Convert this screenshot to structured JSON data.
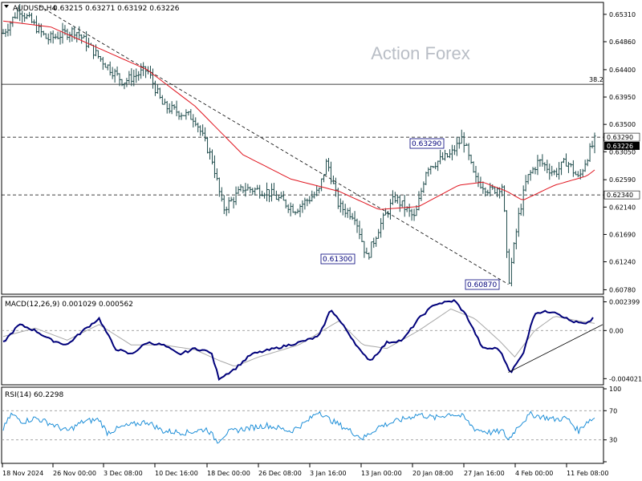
{
  "header": {
    "symbol": "AUDUSD,H4",
    "ohlc": "0.63215 0.63271 0.63192 0.63226",
    "watermark": "Action Forex"
  },
  "colors": {
    "bars": "#1e4b4b",
    "ma": "#e0141e",
    "macd_line": "#00007a",
    "macd_signal": "#a8a8a8",
    "rsi": "#1e8fd8",
    "frame": "#000000",
    "grid_dash": "#9a9a9a"
  },
  "chart_data": [
    {
      "type": "candlestick",
      "panel": "price",
      "ylim": [
        0.6072,
        0.6548
      ],
      "y_ticks": [
        "0.65310",
        "0.64860",
        "0.64400",
        "0.63950",
        "0.63500",
        "0.63050",
        "0.62590",
        "0.62140",
        "0.61690",
        "0.61240",
        "0.60780"
      ],
      "fibo_label": "38.2",
      "fibo_level": 0.6416,
      "levels": [
        {
          "label": "0.63290",
          "value": 0.6329,
          "style": "dashed",
          "axis_label": "0.63290"
        },
        {
          "label": "0.62340",
          "value": 0.6234,
          "style": "dashed",
          "axis_label": "0.62340"
        }
      ],
      "current_price_label": "0.63226",
      "annotations": [
        {
          "text": "0.63290",
          "at": "27 Jan 16:00"
        },
        {
          "text": "0.61300",
          "at": "13 Jan 00:00"
        },
        {
          "text": "0.60870",
          "at": "4 Feb 00:00"
        }
      ],
      "trendline": {
        "from": {
          "date": "18 Nov 2024",
          "value": 0.6545
        },
        "to": {
          "date": "4 Feb 00:00",
          "value": 0.6087
        }
      },
      "key_points": [
        [
          0,
          0.65
        ],
        [
          20,
          0.654
        ],
        [
          55,
          0.649
        ],
        [
          90,
          0.6505
        ],
        [
          120,
          0.646
        ],
        [
          150,
          0.642
        ],
        [
          180,
          0.644
        ],
        [
          200,
          0.638
        ],
        [
          240,
          0.636
        ],
        [
          262,
          0.629
        ],
        [
          275,
          0.621
        ],
        [
          300,
          0.6245
        ],
        [
          330,
          0.624
        ],
        [
          365,
          0.621
        ],
        [
          395,
          0.624
        ],
        [
          405,
          0.629
        ],
        [
          420,
          0.6215
        ],
        [
          440,
          0.62
        ],
        [
          455,
          0.613
        ],
        [
          470,
          0.618
        ],
        [
          490,
          0.623
        ],
        [
          515,
          0.6195
        ],
        [
          530,
          0.628
        ],
        [
          560,
          0.63
        ],
        [
          575,
          0.6329
        ],
        [
          590,
          0.626
        ],
        [
          610,
          0.624
        ],
        [
          625,
          0.625
        ],
        [
          632,
          0.6087
        ],
        [
          645,
          0.62
        ],
        [
          655,
          0.626
        ],
        [
          670,
          0.629
        ],
        [
          690,
          0.627
        ],
        [
          705,
          0.629
        ],
        [
          720,
          0.626
        ],
        [
          730,
          0.6295
        ],
        [
          740,
          0.6323
        ]
      ],
      "ma_points": [
        [
          0,
          0.652
        ],
        [
          60,
          0.651
        ],
        [
          120,
          0.6475
        ],
        [
          180,
          0.644
        ],
        [
          240,
          0.638
        ],
        [
          300,
          0.63
        ],
        [
          360,
          0.626
        ],
        [
          420,
          0.624
        ],
        [
          470,
          0.621
        ],
        [
          520,
          0.6215
        ],
        [
          570,
          0.625
        ],
        [
          600,
          0.6255
        ],
        [
          630,
          0.624
        ],
        [
          650,
          0.6225
        ],
        [
          690,
          0.625
        ],
        [
          730,
          0.6265
        ],
        [
          740,
          0.6275
        ]
      ]
    },
    {
      "type": "line",
      "panel": "macd",
      "label": "MACD(12,26,9) 0.001029 0.000562",
      "ylim": [
        -0.0044,
        0.0027
      ],
      "y_ticks": [
        "0.002399",
        "0.00",
        "-0.004021"
      ],
      "macd_points": [
        [
          0,
          -0.001
        ],
        [
          20,
          0.0005
        ],
        [
          40,
          0.0
        ],
        [
          60,
          -0.0008
        ],
        [
          80,
          -0.0012
        ],
        [
          100,
          0.0
        ],
        [
          120,
          0.001
        ],
        [
          140,
          -0.0015
        ],
        [
          160,
          -0.002
        ],
        [
          180,
          -0.001
        ],
        [
          200,
          -0.0012
        ],
        [
          220,
          -0.002
        ],
        [
          240,
          -0.0015
        ],
        [
          260,
          -0.0018
        ],
        [
          270,
          -0.004
        ],
        [
          290,
          -0.0032
        ],
        [
          310,
          -0.002
        ],
        [
          340,
          -0.0015
        ],
        [
          370,
          -0.001
        ],
        [
          395,
          -0.0005
        ],
        [
          410,
          0.0018
        ],
        [
          430,
          0.0
        ],
        [
          450,
          -0.002
        ],
        [
          460,
          -0.0025
        ],
        [
          480,
          -0.001
        ],
        [
          500,
          -0.0008
        ],
        [
          520,
          0.001
        ],
        [
          540,
          0.0022
        ],
        [
          565,
          0.0025
        ],
        [
          580,
          0.0012
        ],
        [
          600,
          -0.0015
        ],
        [
          620,
          -0.0015
        ],
        [
          635,
          -0.0035
        ],
        [
          650,
          -0.002
        ],
        [
          665,
          0.0015
        ],
        [
          690,
          0.0016
        ],
        [
          710,
          0.0008
        ],
        [
          730,
          0.0005
        ],
        [
          740,
          0.0012
        ]
      ],
      "signal_points": [
        [
          0,
          -0.0005
        ],
        [
          40,
          0.0002
        ],
        [
          80,
          -0.0008
        ],
        [
          120,
          0.0005
        ],
        [
          160,
          -0.0012
        ],
        [
          200,
          -0.0012
        ],
        [
          240,
          -0.0016
        ],
        [
          270,
          -0.0025
        ],
        [
          290,
          -0.003
        ],
        [
          320,
          -0.0022
        ],
        [
          370,
          -0.0012
        ],
        [
          400,
          0.0
        ],
        [
          420,
          0.0008
        ],
        [
          450,
          -0.0012
        ],
        [
          480,
          -0.0015
        ],
        [
          520,
          0.0
        ],
        [
          560,
          0.0018
        ],
        [
          590,
          0.001
        ],
        [
          620,
          -0.0008
        ],
        [
          640,
          -0.0022
        ],
        [
          665,
          0.0
        ],
        [
          690,
          0.0012
        ],
        [
          720,
          0.0008
        ],
        [
          740,
          0.0006
        ]
      ],
      "trendline": {
        "from": {
          "date": "4 Feb 00:00",
          "value": -0.0035
        },
        "to": {
          "date": "11 Feb 08:00",
          "value": 0.0005
        }
      }
    },
    {
      "type": "line",
      "panel": "rsi",
      "label": "RSI(14) 60.2298",
      "ylim": [
        0,
        100
      ],
      "y_ticks": [
        "100",
        "70",
        "30",
        "0"
      ],
      "levels": [
        70,
        30
      ],
      "key_points": [
        [
          0,
          45
        ],
        [
          10,
          65
        ],
        [
          25,
          55
        ],
        [
          40,
          60
        ],
        [
          60,
          52
        ],
        [
          80,
          42
        ],
        [
          100,
          55
        ],
        [
          120,
          58
        ],
        [
          130,
          40
        ],
        [
          150,
          48
        ],
        [
          180,
          55
        ],
        [
          200,
          42
        ],
        [
          230,
          40
        ],
        [
          255,
          45
        ],
        [
          268,
          28
        ],
        [
          280,
          40
        ],
        [
          300,
          45
        ],
        [
          330,
          50
        ],
        [
          360,
          42
        ],
        [
          380,
          55
        ],
        [
          395,
          70
        ],
        [
          405,
          60
        ],
        [
          430,
          45
        ],
        [
          450,
          32
        ],
        [
          470,
          48
        ],
        [
          490,
          55
        ],
        [
          520,
          65
        ],
        [
          540,
          60
        ],
        [
          560,
          66
        ],
        [
          575,
          62
        ],
        [
          590,
          45
        ],
        [
          610,
          40
        ],
        [
          625,
          42
        ],
        [
          632,
          30
        ],
        [
          645,
          50
        ],
        [
          660,
          65
        ],
        [
          690,
          58
        ],
        [
          705,
          60
        ],
        [
          720,
          42
        ],
        [
          730,
          55
        ],
        [
          740,
          60
        ]
      ]
    }
  ],
  "x_axis": {
    "ticks": [
      "18 Nov 2024",
      "26 Nov 00:00",
      "3 Dec 08:00",
      "10 Dec 16:00",
      "18 Dec 00:00",
      "26 Dec 08:00",
      "3 Jan 16:00",
      "13 Jan 00:00",
      "20 Jan 08:00",
      "27 Jan 16:00",
      "4 Feb 00:00",
      "11 Feb 08:00"
    ]
  }
}
